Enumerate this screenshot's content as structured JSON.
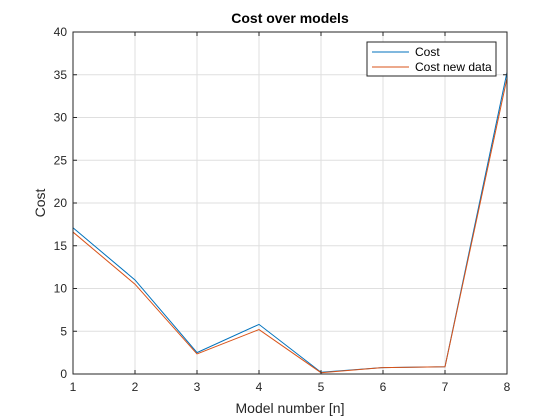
{
  "chart_data": {
    "type": "line",
    "title": "Cost over models",
    "xlabel": "Model number [n]",
    "ylabel": "Cost",
    "x": [
      1,
      2,
      3,
      4,
      5,
      6,
      7,
      8
    ],
    "xlim": [
      1,
      8
    ],
    "ylim": [
      0,
      40
    ],
    "xticks": [
      1,
      2,
      3,
      4,
      5,
      6,
      7,
      8
    ],
    "yticks": [
      0,
      5,
      10,
      15,
      20,
      25,
      30,
      35,
      40
    ],
    "grid": true,
    "legend_position": "top-right",
    "series": [
      {
        "name": "Cost",
        "color": "#0072BD",
        "values": [
          17.1,
          11.0,
          2.5,
          5.8,
          0.2,
          0.75,
          0.85,
          35.3
        ]
      },
      {
        "name": "Cost new data",
        "color": "#D95319",
        "values": [
          16.6,
          10.5,
          2.35,
          5.2,
          0.15,
          0.75,
          0.85,
          34.6
        ]
      }
    ]
  }
}
